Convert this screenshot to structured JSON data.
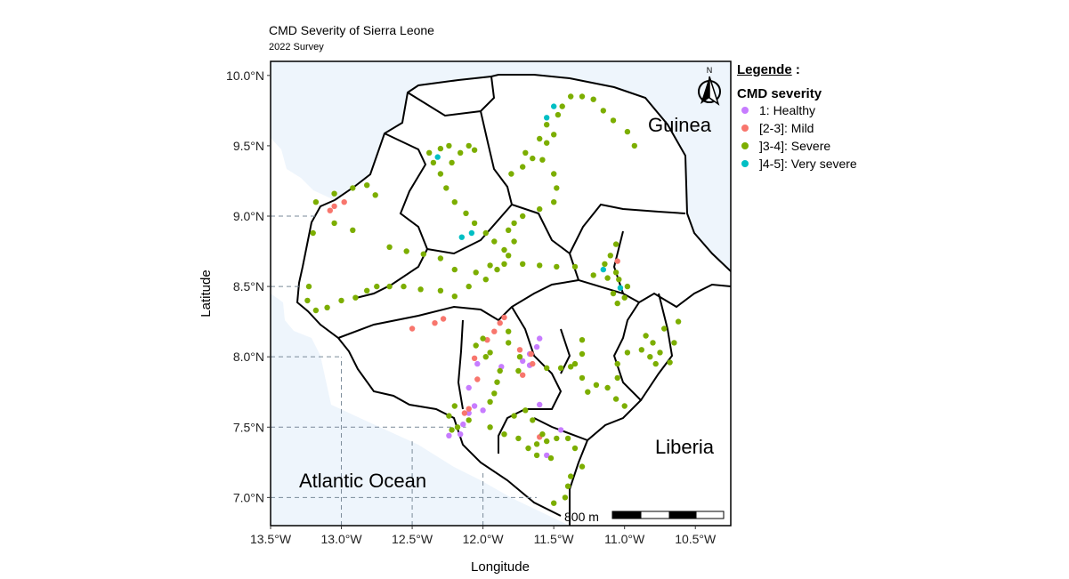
{
  "title": "CMD Severity of Sierra Leone",
  "subtitle": "2022 Survey",
  "axes": {
    "xlabel": "Longitude",
    "ylabel": "Latitude",
    "x_ticks": [
      "13.5°W",
      "13.0°W",
      "12.5°W",
      "12.0°W",
      "11.5°W",
      "11.0°W",
      "10.5°W"
    ],
    "y_ticks": [
      "10.0°N",
      "9.5°N",
      "9.0°N",
      "8.5°N",
      "8.0°N",
      "7.5°N",
      "7.0°N"
    ]
  },
  "map_labels": {
    "guinea": "Guinea",
    "liberia": "Liberia",
    "ocean": "Atlantic Ocean",
    "north": "N",
    "scale": "800 m"
  },
  "legend": {
    "heading": "Legende",
    "colon": " :",
    "subtitle": "CMD severity",
    "items": [
      {
        "label": "1: Healthy",
        "color": "#c77cff"
      },
      {
        "label": "[2-3]: Mild",
        "color": "#f8766d"
      },
      {
        "label": "]3-4]: Severe",
        "color": "#7cae00"
      },
      {
        "label": "]4-5]: Very severe",
        "color": "#00bfc4"
      }
    ]
  },
  "colors": {
    "ocean": "#eef5fc",
    "land": "#ffffff",
    "border": "#000000",
    "grid": "#7a8a99"
  },
  "chart_data": {
    "type": "scatter",
    "title": "CMD Severity of Sierra Leone",
    "subtitle": "2022 Survey",
    "xlabel": "Longitude",
    "ylabel": "Latitude",
    "xlim": [
      -13.5,
      -10.25
    ],
    "ylim": [
      6.8,
      10.1
    ],
    "series": [
      {
        "name": "1: Healthy",
        "points": [
          [
            -12.24,
            7.44
          ],
          [
            -12.16,
            7.45
          ],
          [
            -12.14,
            7.52
          ],
          [
            -12.1,
            7.6
          ],
          [
            -12.06,
            7.65
          ],
          [
            -12.0,
            7.62
          ],
          [
            -11.6,
            7.66
          ],
          [
            -11.55,
            7.3
          ],
          [
            -11.45,
            7.48
          ],
          [
            -11.67,
            8.02
          ],
          [
            -11.62,
            8.07
          ],
          [
            -11.67,
            7.94
          ],
          [
            -12.1,
            7.78
          ],
          [
            -12.04,
            7.95
          ],
          [
            -11.87,
            7.93
          ],
          [
            -11.6,
            8.13
          ],
          [
            -11.72,
            7.97
          ]
        ]
      },
      {
        "name": "[2-3]: Mild",
        "points": [
          [
            -13.08,
            9.04
          ],
          [
            -13.05,
            9.07
          ],
          [
            -12.98,
            9.1
          ],
          [
            -12.34,
            8.24
          ],
          [
            -12.28,
            8.27
          ],
          [
            -12.5,
            8.2
          ],
          [
            -11.85,
            8.28
          ],
          [
            -11.88,
            8.24
          ],
          [
            -11.92,
            8.18
          ],
          [
            -11.97,
            8.12
          ],
          [
            -12.06,
            7.99
          ],
          [
            -12.1,
            7.63
          ],
          [
            -12.13,
            7.6
          ],
          [
            -12.04,
            7.84
          ],
          [
            -11.74,
            8.05
          ],
          [
            -11.65,
            7.95
          ],
          [
            -11.6,
            7.43
          ],
          [
            -11.66,
            8.02
          ],
          [
            -11.05,
            8.68
          ],
          [
            -11.72,
            7.87
          ]
        ]
      },
      {
        "name": "]3-4]: Severe",
        "points": [
          [
            -13.18,
            9.1
          ],
          [
            -13.05,
            9.16
          ],
          [
            -12.92,
            9.2
          ],
          [
            -12.82,
            9.22
          ],
          [
            -12.76,
            9.15
          ],
          [
            -13.2,
            8.88
          ],
          [
            -13.05,
            8.95
          ],
          [
            -12.92,
            8.9
          ],
          [
            -12.66,
            8.78
          ],
          [
            -12.54,
            8.75
          ],
          [
            -12.42,
            8.73
          ],
          [
            -12.3,
            8.7
          ],
          [
            -12.2,
            8.62
          ],
          [
            -12.05,
            8.6
          ],
          [
            -11.95,
            8.65
          ],
          [
            -11.85,
            8.66
          ],
          [
            -11.72,
            8.66
          ],
          [
            -11.6,
            8.65
          ],
          [
            -11.48,
            8.64
          ],
          [
            -11.35,
            8.64
          ],
          [
            -11.22,
            8.58
          ],
          [
            -11.12,
            8.56
          ],
          [
            -13.23,
            8.5
          ],
          [
            -13.24,
            8.4
          ],
          [
            -13.18,
            8.33
          ],
          [
            -13.1,
            8.35
          ],
          [
            -13.0,
            8.4
          ],
          [
            -12.9,
            8.42
          ],
          [
            -12.82,
            8.47
          ],
          [
            -12.75,
            8.5
          ],
          [
            -12.66,
            8.5
          ],
          [
            -12.56,
            8.5
          ],
          [
            -12.44,
            8.48
          ],
          [
            -12.3,
            8.47
          ],
          [
            -12.2,
            8.43
          ],
          [
            -12.1,
            8.5
          ],
          [
            -11.98,
            8.55
          ],
          [
            -11.9,
            8.62
          ],
          [
            -12.38,
            9.45
          ],
          [
            -12.35,
            9.38
          ],
          [
            -12.3,
            9.3
          ],
          [
            -12.26,
            9.2
          ],
          [
            -12.2,
            9.1
          ],
          [
            -12.12,
            9.02
          ],
          [
            -12.06,
            8.95
          ],
          [
            -11.98,
            8.88
          ],
          [
            -11.92,
            8.82
          ],
          [
            -11.85,
            8.76
          ],
          [
            -12.3,
            9.48
          ],
          [
            -12.24,
            9.5
          ],
          [
            -12.16,
            9.45
          ],
          [
            -12.1,
            9.5
          ],
          [
            -12.06,
            9.47
          ],
          [
            -12.22,
            9.38
          ],
          [
            -11.65,
            9.41
          ],
          [
            -11.58,
            9.4
          ],
          [
            -11.55,
            9.52
          ],
          [
            -11.5,
            9.58
          ],
          [
            -11.47,
            9.72
          ],
          [
            -11.44,
            9.78
          ],
          [
            -11.38,
            9.85
          ],
          [
            -11.3,
            9.85
          ],
          [
            -11.22,
            9.83
          ],
          [
            -11.15,
            9.75
          ],
          [
            -11.08,
            9.68
          ],
          [
            -10.98,
            9.6
          ],
          [
            -10.93,
            9.5
          ],
          [
            -11.5,
            9.3
          ],
          [
            -11.48,
            9.2
          ],
          [
            -11.5,
            9.1
          ],
          [
            -11.6,
            9.05
          ],
          [
            -11.72,
            9.0
          ],
          [
            -11.78,
            8.95
          ],
          [
            -11.82,
            8.9
          ],
          [
            -11.78,
            8.82
          ],
          [
            -11.82,
            8.72
          ],
          [
            -11.06,
            8.8
          ],
          [
            -11.1,
            8.72
          ],
          [
            -11.14,
            8.66
          ],
          [
            -11.06,
            8.6
          ],
          [
            -11.04,
            8.55
          ],
          [
            -11.08,
            8.45
          ],
          [
            -11.05,
            8.38
          ],
          [
            -10.98,
            8.5
          ],
          [
            -11.0,
            8.42
          ],
          [
            -11.3,
            8.12
          ],
          [
            -11.3,
            8.02
          ],
          [
            -11.35,
            7.95
          ],
          [
            -11.3,
            7.85
          ],
          [
            -11.26,
            7.75
          ],
          [
            -11.2,
            7.8
          ],
          [
            -11.12,
            7.78
          ],
          [
            -11.06,
            7.7
          ],
          [
            -11.0,
            7.65
          ],
          [
            -11.05,
            7.85
          ],
          [
            -11.05,
            7.95
          ],
          [
            -10.98,
            8.03
          ],
          [
            -10.88,
            8.05
          ],
          [
            -10.8,
            8.1
          ],
          [
            -10.72,
            8.2
          ],
          [
            -10.75,
            8.03
          ],
          [
            -10.82,
            8.0
          ],
          [
            -10.78,
            7.95
          ],
          [
            -10.68,
            7.96
          ],
          [
            -10.65,
            8.1
          ],
          [
            -10.62,
            8.25
          ],
          [
            -10.85,
            8.15
          ],
          [
            -12.2,
            7.65
          ],
          [
            -12.24,
            7.58
          ],
          [
            -12.22,
            7.48
          ],
          [
            -12.18,
            7.5
          ],
          [
            -12.1,
            7.55
          ],
          [
            -11.95,
            7.5
          ],
          [
            -11.85,
            7.45
          ],
          [
            -11.75,
            7.42
          ],
          [
            -11.68,
            7.35
          ],
          [
            -11.62,
            7.38
          ],
          [
            -11.55,
            7.4
          ],
          [
            -11.48,
            7.42
          ],
          [
            -11.4,
            7.42
          ],
          [
            -11.35,
            7.35
          ],
          [
            -11.3,
            7.22
          ],
          [
            -11.38,
            7.15
          ],
          [
            -11.4,
            7.08
          ],
          [
            -11.42,
            7.0
          ],
          [
            -11.5,
            6.96
          ],
          [
            -11.65,
            7.55
          ],
          [
            -11.58,
            7.45
          ],
          [
            -11.62,
            7.3
          ],
          [
            -11.52,
            7.28
          ],
          [
            -11.7,
            7.62
          ],
          [
            -11.78,
            7.58
          ],
          [
            -11.75,
            7.9
          ],
          [
            -11.55,
            7.92
          ],
          [
            -11.45,
            7.92
          ],
          [
            -11.38,
            7.93
          ],
          [
            -11.88,
            7.9
          ],
          [
            -11.9,
            7.82
          ],
          [
            -11.92,
            7.74
          ],
          [
            -11.95,
            7.68
          ],
          [
            -11.82,
            8.1
          ],
          [
            -11.82,
            8.18
          ],
          [
            -11.74,
            8.0
          ],
          [
            -11.95,
            8.03
          ],
          [
            -12.0,
            8.13
          ],
          [
            -12.05,
            8.08
          ],
          [
            -11.98,
            8.0
          ],
          [
            -11.55,
            9.65
          ],
          [
            -11.6,
            9.55
          ],
          [
            -11.7,
            9.45
          ],
          [
            -11.72,
            9.35
          ],
          [
            -11.8,
            9.3
          ]
        ]
      },
      {
        "name": "]4-5]: Very severe",
        "points": [
          [
            -12.32,
            9.42
          ],
          [
            -12.15,
            8.85
          ],
          [
            -12.08,
            8.88
          ],
          [
            -11.55,
            9.7
          ],
          [
            -11.5,
            9.78
          ],
          [
            -11.15,
            8.62
          ],
          [
            -11.03,
            8.49
          ]
        ]
      }
    ]
  }
}
